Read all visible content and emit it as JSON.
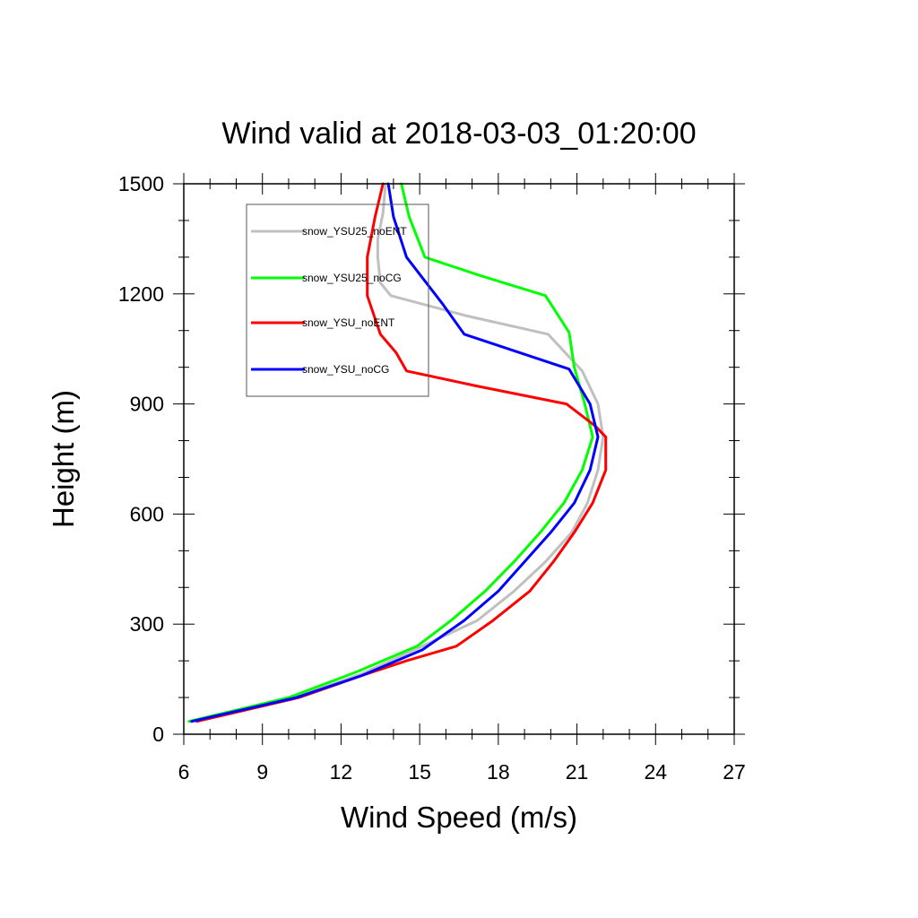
{
  "chart_data": {
    "type": "line",
    "title": "Wind valid at 2018-03-03_01:20:00",
    "xlabel": "Wind Speed (m/s)",
    "ylabel": "Height (m)",
    "xlim": [
      6,
      27
    ],
    "ylim": [
      0,
      1500
    ],
    "xticks": [
      6,
      9,
      12,
      15,
      18,
      21,
      24,
      27
    ],
    "yticks": [
      0,
      300,
      600,
      900,
      1200,
      1500
    ],
    "legend_position": "top-left",
    "grid": false,
    "series": [
      {
        "name": "snow_YSU25_noENT",
        "color": "#c0c0c0",
        "points": [
          [
            6.3,
            35
          ],
          [
            10.2,
            100
          ],
          [
            12.8,
            165
          ],
          [
            14.8,
            230
          ],
          [
            17.2,
            310
          ],
          [
            18.6,
            390
          ],
          [
            19.8,
            470
          ],
          [
            20.8,
            550
          ],
          [
            21.4,
            630
          ],
          [
            21.8,
            720
          ],
          [
            22.0,
            810
          ],
          [
            21.8,
            900
          ],
          [
            21.2,
            990
          ],
          [
            19.9,
            1090
          ],
          [
            16.8,
            1140
          ],
          [
            13.9,
            1195
          ],
          [
            13.5,
            1230
          ],
          [
            13.4,
            1300
          ],
          [
            13.4,
            1350
          ],
          [
            13.6,
            1420
          ],
          [
            13.7,
            1500
          ]
        ]
      },
      {
        "name": "snow_YSU25_noCG",
        "color": "#00ff00",
        "points": [
          [
            6.2,
            35
          ],
          [
            10.0,
            100
          ],
          [
            12.6,
            170
          ],
          [
            14.9,
            240
          ],
          [
            16.2,
            310
          ],
          [
            17.5,
            390
          ],
          [
            18.6,
            470
          ],
          [
            19.6,
            550
          ],
          [
            20.5,
            630
          ],
          [
            21.2,
            720
          ],
          [
            21.6,
            810
          ],
          [
            21.3,
            900
          ],
          [
            20.9,
            1000
          ],
          [
            20.7,
            1095
          ],
          [
            19.8,
            1195
          ],
          [
            17.3,
            1250
          ],
          [
            15.2,
            1300
          ],
          [
            14.6,
            1410
          ],
          [
            14.3,
            1500
          ]
        ]
      },
      {
        "name": "snow_YSU_noENT",
        "color": "#ff0000",
        "points": [
          [
            6.5,
            35
          ],
          [
            10.4,
            100
          ],
          [
            12.8,
            160
          ],
          [
            14.5,
            200
          ],
          [
            16.4,
            240
          ],
          [
            17.8,
            310
          ],
          [
            19.2,
            390
          ],
          [
            20.1,
            470
          ],
          [
            20.9,
            550
          ],
          [
            21.6,
            630
          ],
          [
            22.1,
            720
          ],
          [
            22.1,
            810
          ],
          [
            21.7,
            840
          ],
          [
            20.6,
            900
          ],
          [
            17.1,
            950
          ],
          [
            14.5,
            990
          ],
          [
            14.1,
            1040
          ],
          [
            13.5,
            1090
          ],
          [
            13.0,
            1195
          ],
          [
            13.0,
            1300
          ],
          [
            13.3,
            1410
          ],
          [
            13.6,
            1500
          ]
        ]
      },
      {
        "name": "snow_YSU_noCG",
        "color": "#0000ff",
        "points": [
          [
            6.3,
            35
          ],
          [
            10.3,
            100
          ],
          [
            12.8,
            160
          ],
          [
            15.1,
            230
          ],
          [
            16.7,
            310
          ],
          [
            18.0,
            390
          ],
          [
            19.0,
            470
          ],
          [
            20.0,
            550
          ],
          [
            20.9,
            630
          ],
          [
            21.5,
            720
          ],
          [
            21.8,
            810
          ],
          [
            21.5,
            900
          ],
          [
            20.7,
            995
          ],
          [
            16.7,
            1090
          ],
          [
            15.9,
            1170
          ],
          [
            14.5,
            1300
          ],
          [
            14.0,
            1410
          ],
          [
            13.8,
            1500
          ]
        ]
      }
    ]
  }
}
